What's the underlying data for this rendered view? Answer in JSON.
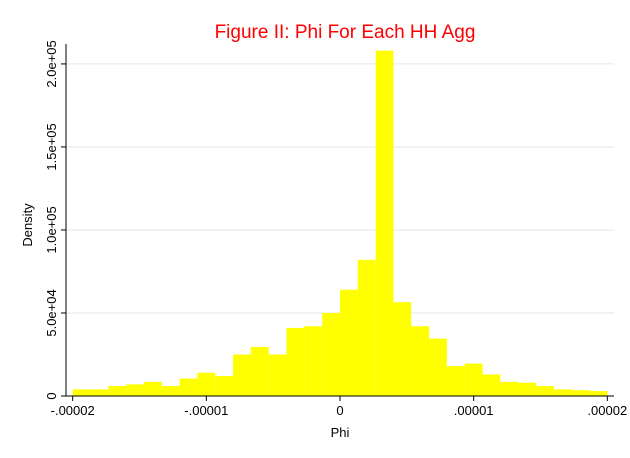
{
  "chart_data": {
    "type": "bar",
    "title": "Figure II: Phi For Each HH Agg",
    "xlabel": "Phi",
    "ylabel": "Density",
    "xlim": [
      -2.05e-05,
      2.05e-05
    ],
    "ylim": [
      0,
      212000
    ],
    "x_ticks": [
      {
        "value": -2e-05,
        "label": "-.00002"
      },
      {
        "value": -1e-05,
        "label": "-.00001"
      },
      {
        "value": 0,
        "label": "0"
      },
      {
        "value": 1e-05,
        "label": ".00001"
      },
      {
        "value": 2e-05,
        "label": ".00002"
      }
    ],
    "y_ticks": [
      {
        "value": 0,
        "label": "0"
      },
      {
        "value": 50000,
        "label": "5.0e+04"
      },
      {
        "value": 100000,
        "label": "1.0e+05"
      },
      {
        "value": 150000,
        "label": "1.5e+05"
      },
      {
        "value": 200000,
        "label": "2.0e+05"
      }
    ],
    "grid": true,
    "bar_color": "#ffff00",
    "bar_outline": "#ffff00",
    "title_color": "#ff0000",
    "bins": [
      {
        "x0": -2e-05,
        "x1": -1.867e-05,
        "value": 4000
      },
      {
        "x0": -1.867e-05,
        "x1": -1.733e-05,
        "value": 4000
      },
      {
        "x0": -1.733e-05,
        "x1": -1.6e-05,
        "value": 6000
      },
      {
        "x0": -1.6e-05,
        "x1": -1.467e-05,
        "value": 7000
      },
      {
        "x0": -1.467e-05,
        "x1": -1.333e-05,
        "value": 8500
      },
      {
        "x0": -1.333e-05,
        "x1": -1.2e-05,
        "value": 6000
      },
      {
        "x0": -1.2e-05,
        "x1": -1.067e-05,
        "value": 10500
      },
      {
        "x0": -1.067e-05,
        "x1": -9.33e-06,
        "value": 14000
      },
      {
        "x0": -9.33e-06,
        "x1": -8e-06,
        "value": 12000
      },
      {
        "x0": -8e-06,
        "x1": -6.67e-06,
        "value": 25000
      },
      {
        "x0": -6.67e-06,
        "x1": -5.33e-06,
        "value": 29500
      },
      {
        "x0": -5.33e-06,
        "x1": -4e-06,
        "value": 25000
      },
      {
        "x0": -4e-06,
        "x1": -2.67e-06,
        "value": 41000
      },
      {
        "x0": -2.67e-06,
        "x1": -1.33e-06,
        "value": 42000
      },
      {
        "x0": -1.33e-06,
        "x1": 0.0,
        "value": 50000
      },
      {
        "x0": 0.0,
        "x1": 1.33e-06,
        "value": 64000
      },
      {
        "x0": 1.33e-06,
        "x1": 2.67e-06,
        "value": 82000
      },
      {
        "x0": 2.67e-06,
        "x1": 4e-06,
        "value": 208000
      },
      {
        "x0": 4e-06,
        "x1": 5.33e-06,
        "value": 56500
      },
      {
        "x0": 5.33e-06,
        "x1": 6.67e-06,
        "value": 42000
      },
      {
        "x0": 6.67e-06,
        "x1": 8e-06,
        "value": 34500
      },
      {
        "x0": 8e-06,
        "x1": 9.33e-06,
        "value": 18000
      },
      {
        "x0": 9.33e-06,
        "x1": 1.067e-05,
        "value": 19500
      },
      {
        "x0": 1.067e-05,
        "x1": 1.2e-05,
        "value": 13000
      },
      {
        "x0": 1.2e-05,
        "x1": 1.333e-05,
        "value": 8500
      },
      {
        "x0": 1.333e-05,
        "x1": 1.467e-05,
        "value": 8000
      },
      {
        "x0": 1.467e-05,
        "x1": 1.6e-05,
        "value": 6000
      },
      {
        "x0": 1.6e-05,
        "x1": 1.733e-05,
        "value": 4000
      },
      {
        "x0": 1.733e-05,
        "x1": 1.867e-05,
        "value": 3500
      },
      {
        "x0": 1.867e-05,
        "x1": 2e-05,
        "value": 3000
      }
    ]
  }
}
